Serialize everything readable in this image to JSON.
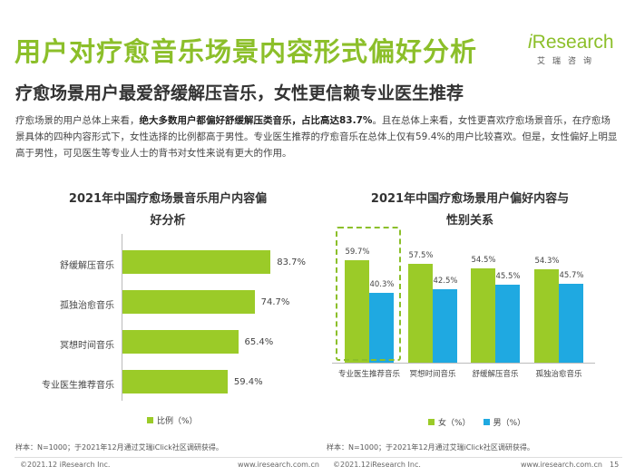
{
  "header": {
    "title": "用户对疗愈音乐场景内容形式偏好分析",
    "logo_i": "i",
    "logo_rest": "Research",
    "logo_sub": "艾瑞咨询"
  },
  "subtitle": "疗愈场景用户最爱舒缓解压音乐，女性更信赖专业医生推荐",
  "body": {
    "p1": "疗愈场景的用户总体上来看，",
    "p_bold": "绝大多数用户都偏好舒缓解压类音乐，占比高达83.7%",
    "p2": "。且在总体上来看，女性更喜欢疗愈场景音乐，在疗愈场景具体的四种内容形式下，女性选择的比例都高于男性。专业医生推荐的疗愈音乐在总体上仅有59.4%的用户比较喜欢。但是，女性偏好上明显高于男性，可见医生等专业人士的背书对女性来说有更大的作用。"
  },
  "left_panel": {
    "title_line1": "2021年中国疗愈场景音乐用户内容偏",
    "title_line2": "好分析",
    "legend": "比例（%）",
    "legend_color": "#9bcb28",
    "note": "样本：N=1000；于2021年12月通过艾瑞iClick社区调研获得。"
  },
  "right_panel": {
    "title_line1": "2021年中国疗愈场景用户偏好内容与",
    "title_line2": "性别关系",
    "legend_female": "女（%）",
    "legend_male": "男（%）",
    "female_color": "#9bcb28",
    "male_color": "#1fa9e1",
    "note": "样本：N=1000；于2021年12月通过艾瑞iClick社区调研获得。"
  },
  "chart_data": [
    {
      "type": "bar",
      "orientation": "horizontal",
      "title": "2021年中国疗愈场景音乐用户内容偏好分析",
      "categories": [
        "舒缓解压音乐",
        "孤独治愈音乐",
        "冥想时间音乐",
        "专业医生推荐音乐"
      ],
      "values": [
        83.7,
        74.7,
        65.4,
        59.4
      ],
      "value_labels": [
        "83.7%",
        "74.7%",
        "65.4%",
        "59.4%"
      ],
      "series_name": "比例（%）",
      "xlim": [
        0,
        100
      ]
    },
    {
      "type": "bar",
      "orientation": "vertical",
      "title": "2021年中国疗愈场景用户偏好内容与性别关系",
      "categories": [
        "专业医生推荐音乐",
        "冥想时间音乐",
        "舒缓解压音乐",
        "孤独治愈音乐"
      ],
      "series": [
        {
          "name": "女（%）",
          "values": [
            59.7,
            57.5,
            54.5,
            54.3
          ],
          "labels": [
            "59.7%",
            "57.5%",
            "54.5%",
            "54.3%"
          ]
        },
        {
          "name": "男（%）",
          "values": [
            40.3,
            42.5,
            45.5,
            45.7
          ],
          "labels": [
            "40.3%",
            "42.5%",
            "45.5%",
            "45.7%"
          ]
        }
      ],
      "ylim": [
        0,
        100
      ],
      "highlighted_category": "专业医生推荐音乐"
    }
  ],
  "footer": {
    "left_copyright": "©2021.12 iResearch Inc.",
    "left_url": "www.iresearch.com.cn",
    "right_copyright": "©2021.12iResearch Inc.",
    "right_url": "www.iresearch.com.cn",
    "page_number": "15"
  }
}
